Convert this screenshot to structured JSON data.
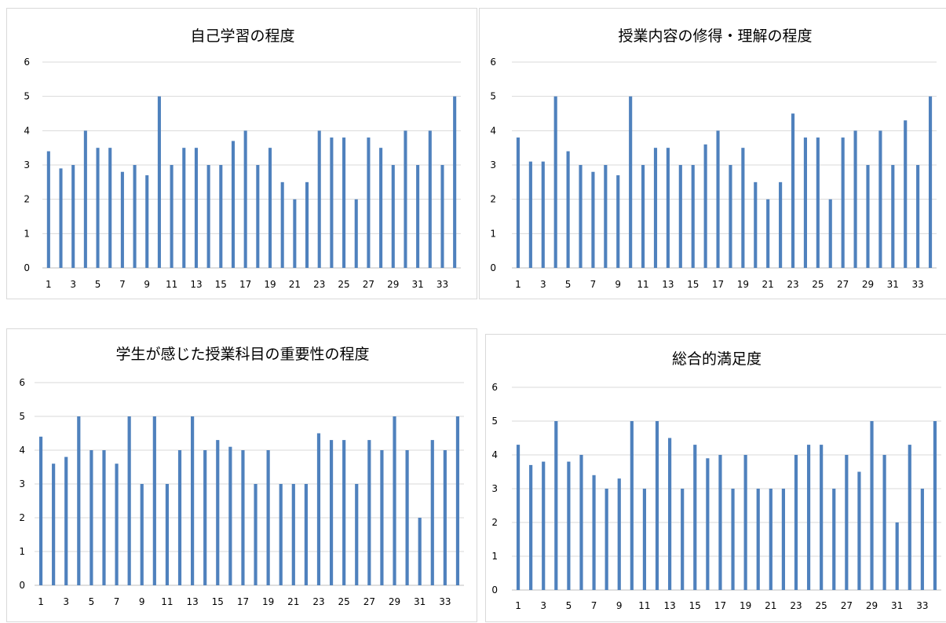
{
  "chart_data": [
    {
      "type": "bar",
      "title": "自己学習の程度",
      "x": [
        1,
        2,
        3,
        4,
        5,
        6,
        7,
        8,
        9,
        10,
        11,
        12,
        13,
        14,
        15,
        16,
        17,
        18,
        19,
        20,
        21,
        22,
        23,
        24,
        25,
        26,
        27,
        28,
        29,
        30,
        31,
        32,
        33,
        34
      ],
      "x_tick_labels": [
        "1",
        "3",
        "5",
        "7",
        "9",
        "11",
        "13",
        "15",
        "17",
        "19",
        "21",
        "23",
        "25",
        "27",
        "29",
        "31",
        "33"
      ],
      "values": [
        3.4,
        2.9,
        3,
        4,
        3.5,
        3.5,
        2.8,
        3,
        2.7,
        5,
        3,
        3.5,
        3.5,
        3,
        3,
        3.7,
        4,
        3,
        3.5,
        2.5,
        2,
        2.5,
        4,
        3.8,
        3.8,
        2,
        3.8,
        3.5,
        3,
        4,
        3,
        4,
        3,
        5
      ],
      "ylim": [
        0,
        6
      ],
      "y_ticks": [
        "0",
        "1",
        "2",
        "3",
        "4",
        "5",
        "6"
      ],
      "grid": true,
      "bar_color": "#4f81bd"
    },
    {
      "type": "bar",
      "title": "授業内容の修得・理解の程度",
      "x": [
        1,
        2,
        3,
        4,
        5,
        6,
        7,
        8,
        9,
        10,
        11,
        12,
        13,
        14,
        15,
        16,
        17,
        18,
        19,
        20,
        21,
        22,
        23,
        24,
        25,
        26,
        27,
        28,
        29,
        30,
        31,
        32,
        33,
        34
      ],
      "x_tick_labels": [
        "1",
        "3",
        "5",
        "7",
        "9",
        "11",
        "13",
        "15",
        "17",
        "19",
        "21",
        "23",
        "25",
        "27",
        "29",
        "31",
        "33"
      ],
      "values": [
        3.8,
        3.1,
        3.1,
        5,
        3.4,
        3,
        2.8,
        3,
        2.7,
        5,
        3,
        3.5,
        3.5,
        3,
        3,
        3.6,
        4,
        3,
        3.5,
        2.5,
        2,
        2.5,
        4.5,
        3.8,
        3.8,
        2,
        3.8,
        4,
        3,
        4,
        3,
        4.3,
        3,
        5
      ],
      "ylim": [
        0,
        6
      ],
      "y_ticks": [
        "0",
        "1",
        "2",
        "3",
        "4",
        "5",
        "6"
      ],
      "grid": true,
      "bar_color": "#4f81bd"
    },
    {
      "type": "bar",
      "title": "学生が感じた授業科目の重要性の程度",
      "x": [
        1,
        2,
        3,
        4,
        5,
        6,
        7,
        8,
        9,
        10,
        11,
        12,
        13,
        14,
        15,
        16,
        17,
        18,
        19,
        20,
        21,
        22,
        23,
        24,
        25,
        26,
        27,
        28,
        29,
        30,
        31,
        32,
        33,
        34
      ],
      "x_tick_labels": [
        "1",
        "3",
        "5",
        "7",
        "9",
        "11",
        "13",
        "15",
        "17",
        "19",
        "21",
        "23",
        "25",
        "27",
        "29",
        "31",
        "33"
      ],
      "values": [
        4.4,
        3.6,
        3.8,
        5,
        4,
        4,
        3.6,
        5,
        3,
        5,
        3,
        4,
        5,
        4,
        4.3,
        4.1,
        4,
        3,
        4,
        3,
        3,
        3,
        4.5,
        4.3,
        4.3,
        3,
        4.3,
        4,
        5,
        4,
        2,
        4.3,
        4,
        5
      ],
      "ylim": [
        0,
        6
      ],
      "y_ticks": [
        "0",
        "1",
        "2",
        "3",
        "4",
        "5",
        "6"
      ],
      "grid": true,
      "bar_color": "#4f81bd"
    },
    {
      "type": "bar",
      "title": "総合的満足度",
      "x": [
        1,
        2,
        3,
        4,
        5,
        6,
        7,
        8,
        9,
        10,
        11,
        12,
        13,
        14,
        15,
        16,
        17,
        18,
        19,
        20,
        21,
        22,
        23,
        24,
        25,
        26,
        27,
        28,
        29,
        30,
        31,
        32,
        33,
        34
      ],
      "x_tick_labels": [
        "1",
        "3",
        "5",
        "7",
        "9",
        "11",
        "13",
        "15",
        "17",
        "19",
        "21",
        "23",
        "25",
        "27",
        "29",
        "31",
        "33"
      ],
      "values": [
        4.3,
        3.7,
        3.8,
        5,
        3.8,
        4,
        3.4,
        3,
        3.3,
        5,
        3,
        5,
        4.5,
        3,
        4.3,
        3.9,
        4,
        3,
        4,
        3,
        3,
        3,
        4,
        4.3,
        4.3,
        3,
        4,
        3.5,
        5,
        4,
        2,
        4.3,
        3,
        5
      ],
      "ylim": [
        0,
        6
      ],
      "y_ticks": [
        "0",
        "1",
        "2",
        "3",
        "4",
        "5",
        "6"
      ],
      "grid": true,
      "bar_color": "#4f81bd"
    }
  ]
}
